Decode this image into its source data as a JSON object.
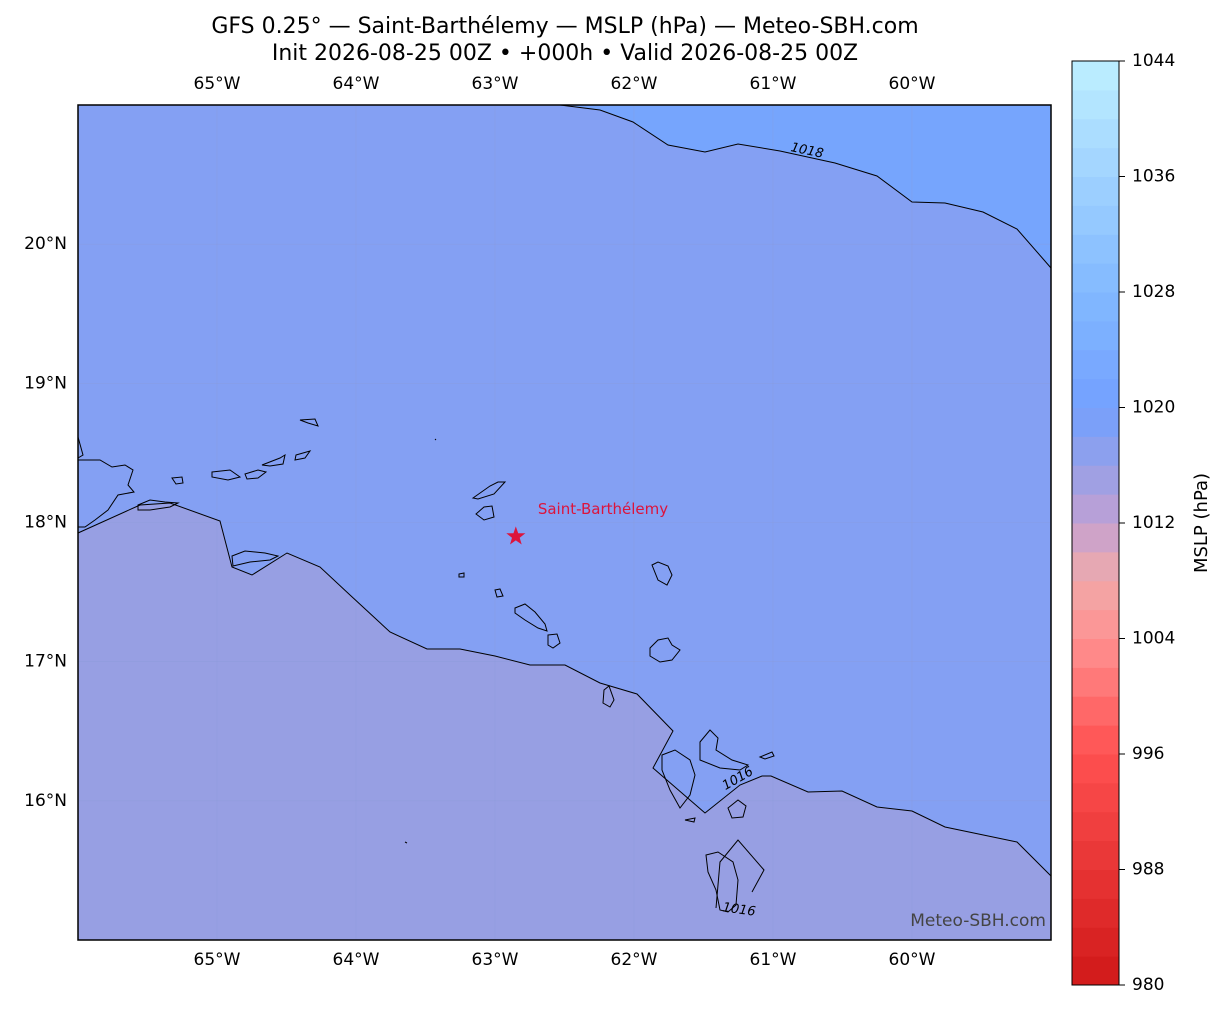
{
  "map": {
    "title": "GFS 0.25° — Saint-Barthélemy — MSLP (hPa) — Meteo-SBH.com",
    "subtitle": "Init 2026-08-25 00Z • +000h • Valid 2026-08-25 00Z",
    "lonlim": [
      -66,
      -59
    ],
    "latlim": [
      15,
      21
    ],
    "lonticks": [
      {
        "value": -65,
        "label": "65°W"
      },
      {
        "value": -64,
        "label": "64°W"
      },
      {
        "value": -63,
        "label": "63°W"
      },
      {
        "value": -62,
        "label": "62°W"
      },
      {
        "value": -61,
        "label": "61°W"
      },
      {
        "value": -60,
        "label": "60°W"
      }
    ],
    "latticks": [
      {
        "value": 16,
        "label": "16°N"
      },
      {
        "value": 17,
        "label": "17°N"
      },
      {
        "value": 18,
        "label": "18°N"
      },
      {
        "value": 19,
        "label": "19°N"
      },
      {
        "value": 20,
        "label": "20°N"
      }
    ],
    "colorbar": {
      "label": "MSLP (hPa)",
      "lim": [
        980,
        1044
      ],
      "ticks": [
        980,
        988,
        996,
        1004,
        1012,
        1020,
        1028,
        1036,
        1044
      ]
    },
    "contour_labels": [
      1018,
      1016,
      1016
    ],
    "place": {
      "name": "Saint-Barthélemy",
      "lon": -62.85,
      "lat": 17.9,
      "color": "#dc143c"
    },
    "watermark": "Meteo-SBH.com"
  }
}
